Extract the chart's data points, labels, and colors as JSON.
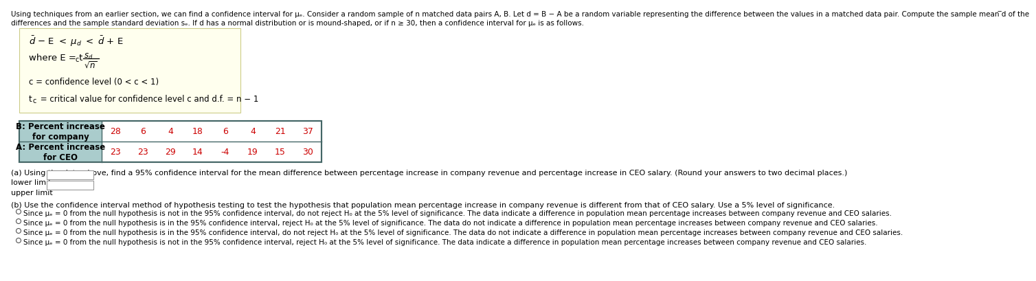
{
  "bg_color": "#ffffff",
  "text_color": "#000000",
  "yellow_bg": "#ffffee",
  "yellow_border": "#cccc88",
  "table_header_bg": "#aacccc",
  "table_border": "#446666",
  "data_color": "#cc0000",
  "header_color": "#000000",
  "top_text1": "Using techniques from an earlier section, we can find a confidence interval for μₑ. Consider a random sample of n matched data pairs A, B. Let d = B − A be a random variable representing the difference between the values in a matched data pair. Compute the sample mean ̅d of the",
  "top_text2": "differences and the sample standard deviation sₑ. If d has a normal distribution or is mound-shaped, or if n ≥ 30, then a confidence interval for μₑ is as follows.",
  "row1_label_line1": "B: Percent increase",
  "row1_label_line2": "for company",
  "row2_label_line1": "A: Percent increase",
  "row2_label_line2": "for CEO",
  "row1_data": [
    28,
    6,
    4,
    18,
    6,
    4,
    21,
    37
  ],
  "row2_data": [
    23,
    23,
    29,
    14,
    -4,
    19,
    15,
    30
  ],
  "part_a_text": "(a) Using the data above, find a 95% confidence interval for the mean difference between percentage increase in company revenue and percentage increase in CEO salary. (Round your answers to two decimal places.)",
  "lower_label": "lower limit",
  "upper_label": "upper limit",
  "part_b_text": "(b) Use the confidence interval method of hypothesis testing to test the hypothesis that population mean percentage increase in company revenue is different from that of CEO salary. Use a 5% level of significance.",
  "option1": "Since μₑ = 0 from the null hypothesis is not in the 95% confidence interval, do not reject H₀ at the 5% level of significance. The data indicate a difference in population mean percentage increases between company revenue and CEO salaries.",
  "option2": "Since μₑ = 0 from the null hypothesis is in the 95% confidence interval, reject H₀ at the 5% level of significance. The data do not indicate a difference in population mean percentage increases between company revenue and CEO salaries.",
  "option3": "Since μₑ = 0 from the null hypothesis is in the 95% confidence interval, do not reject H₀ at the 5% level of significance. The data do not indicate a difference in population mean percentage increases between company revenue and CEO salaries.",
  "option4": "Since μₑ = 0 from the null hypothesis is not in the 95% confidence interval, reject H₀ at the 5% level of significance. The data indicate a difference in population mean percentage increases between company revenue and CEO salaries.",
  "fs_small": 7.5,
  "fs_body": 8.0,
  "fs_formula": 9.5,
  "fs_table_header": 8.5,
  "fs_table_data": 9.0
}
